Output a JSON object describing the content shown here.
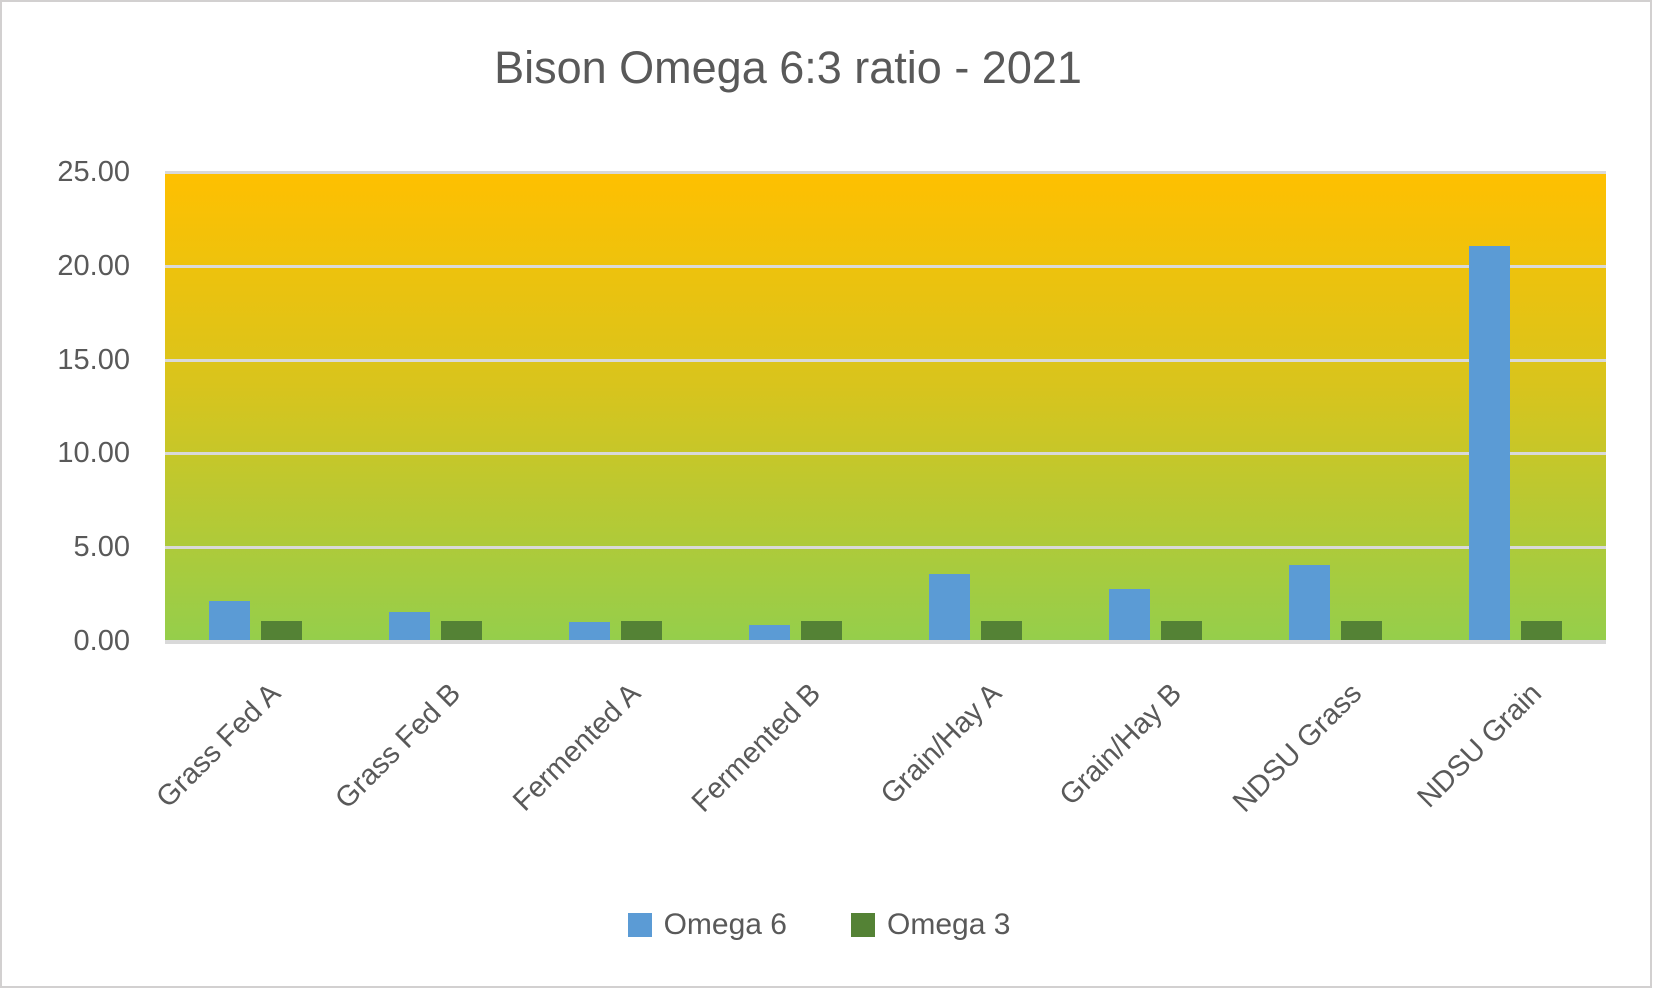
{
  "chart_data": {
    "type": "bar",
    "title": "Bison Omega 6:3 ratio - 2021",
    "categories": [
      "Grass Fed A",
      "Grass Fed B",
      "Fermented A",
      "Fermented B",
      "Grain/Hay A",
      "Grain/Hay B",
      "NDSU Grass",
      "NDSU Grain"
    ],
    "series": [
      {
        "name": "Omega 6",
        "color": "#5b9bd5",
        "values": [
          2.1,
          1.5,
          0.95,
          0.8,
          3.5,
          2.7,
          4.0,
          21.0
        ]
      },
      {
        "name": "Omega 3",
        "color": "#548235",
        "values": [
          1.0,
          1.0,
          1.0,
          1.0,
          1.0,
          1.0,
          1.0,
          1.0
        ]
      }
    ],
    "y_axis": {
      "min": 0,
      "max": 25,
      "step": 5,
      "tick_labels": [
        "0.00",
        "5.00",
        "10.00",
        "15.00",
        "20.00",
        "25.00"
      ]
    },
    "grid": true,
    "legend_position": "bottom",
    "colors": {
      "plot_gradient_top": "#ffc000",
      "plot_gradient_bottom": "#95ce4b",
      "gridline": "#d9d9d9",
      "text": "#595959"
    }
  }
}
